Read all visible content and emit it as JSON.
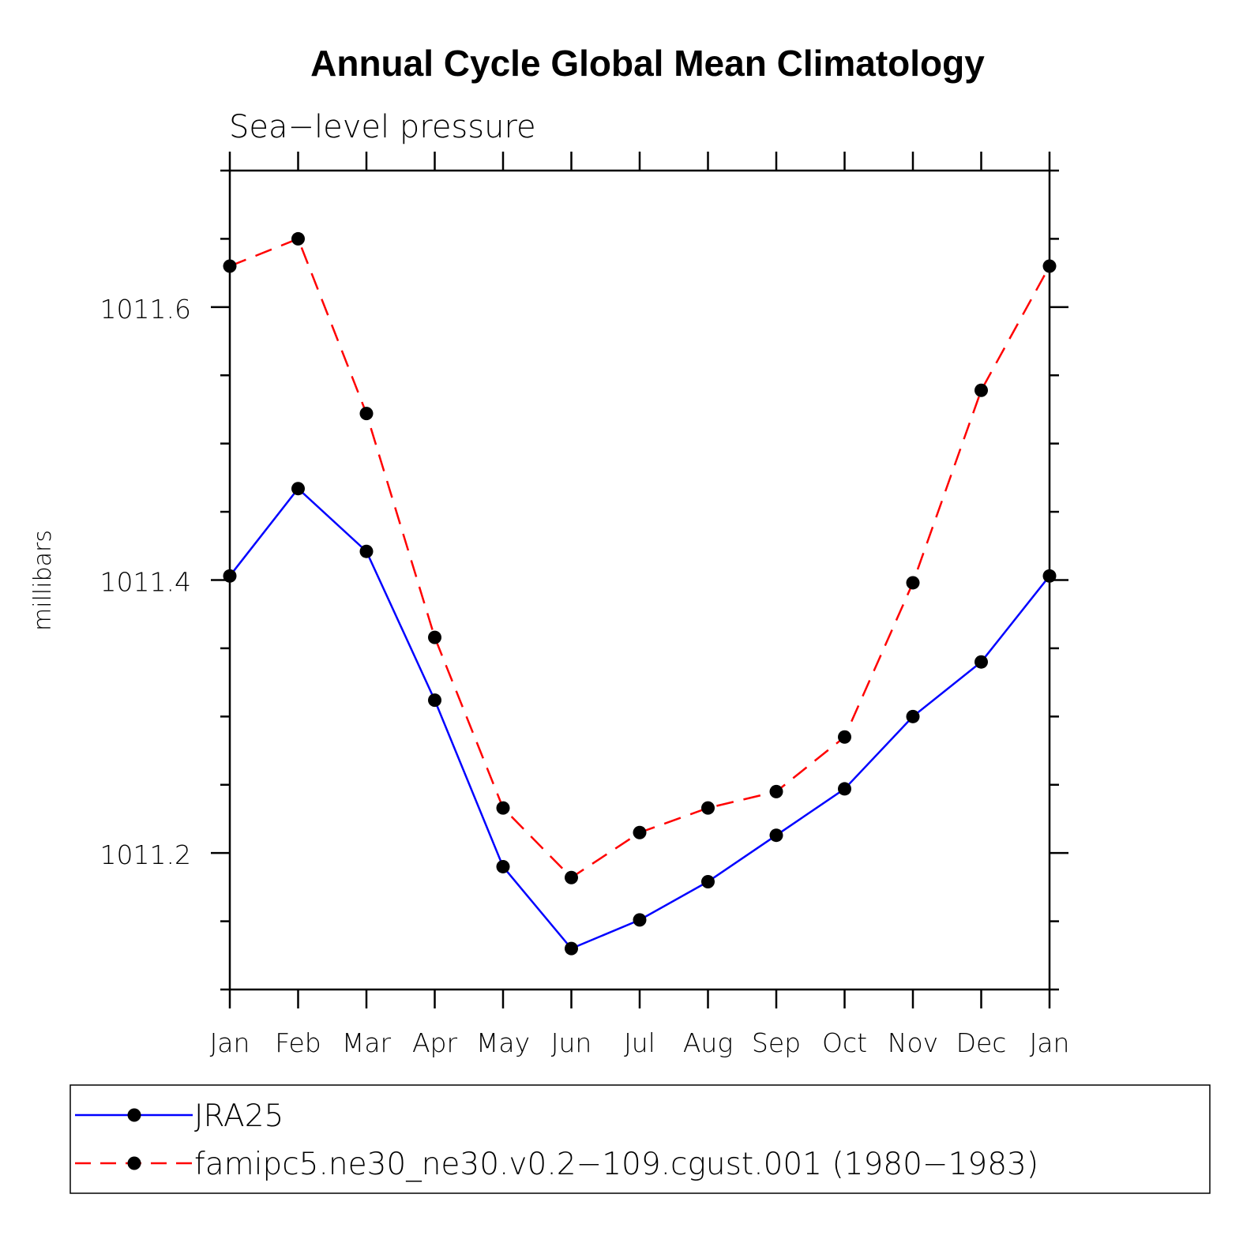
{
  "chart_data": {
    "type": "line",
    "title": "Annual Cycle Global Mean Climatology",
    "subtitle": "Sea−level pressure",
    "xlabel": "",
    "ylabel": "millibars",
    "categories": [
      "Jan",
      "Feb",
      "Mar",
      "Apr",
      "May",
      "Jun",
      "Jul",
      "Aug",
      "Sep",
      "Oct",
      "Nov",
      "Dec",
      "Jan"
    ],
    "ylim": [
      1011.1,
      1011.7
    ],
    "yticks_major": [
      1011.2,
      1011.4,
      1011.6
    ],
    "ytick_labels": [
      "1011.2",
      "1011.4",
      "1011.6"
    ],
    "yticks_minor_step": 0.05,
    "grid": false,
    "legend_position": "bottom",
    "series": [
      {
        "name": "JRA25",
        "color": "#0000ff",
        "dash": "solid",
        "marker": "filled-circle",
        "values": [
          1011.403,
          1011.467,
          1011.421,
          1011.312,
          1011.19,
          1011.13,
          1011.151,
          1011.179,
          1011.213,
          1011.247,
          1011.3,
          1011.34,
          1011.403
        ]
      },
      {
        "name": "famipc5.ne30_ne30.v0.2−109.cgust.001 (1980−1983)",
        "color": "#ff0000",
        "dash": "dashed",
        "marker": "filled-circle",
        "values": [
          1011.63,
          1011.65,
          1011.522,
          1011.358,
          1011.233,
          1011.182,
          1011.215,
          1011.233,
          1011.245,
          1011.285,
          1011.398,
          1011.539,
          1011.63
        ]
      }
    ]
  }
}
